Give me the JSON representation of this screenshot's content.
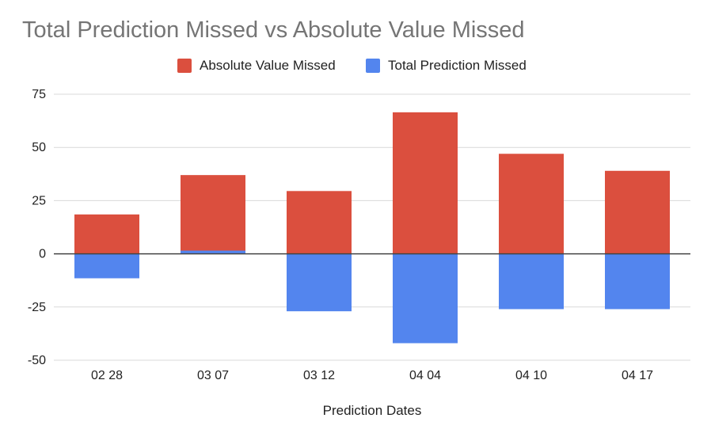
{
  "chart_data": {
    "type": "bar",
    "stacked": true,
    "title": "Total Prediction Missed vs Absolute Value Missed",
    "xlabel": "Prediction Dates",
    "ylabel": "",
    "categories": [
      "02 28",
      "03 07",
      "03 12",
      "04 04",
      "04 10",
      "04 17"
    ],
    "series": [
      {
        "name": "Absolute Value Missed",
        "color": "#db4f3e",
        "values": [
          18.5,
          37,
          29.5,
          66.5,
          47,
          39
        ]
      },
      {
        "name": "Total Prediction Missed",
        "color": "#5385ee",
        "values": [
          -11.5,
          1.5,
          -27,
          -42,
          -26,
          -26
        ]
      }
    ],
    "ylim": [
      -50,
      75
    ],
    "yticks": [
      75,
      50,
      25,
      0,
      -25,
      -50
    ],
    "grid": true,
    "legend_position": "top"
  }
}
